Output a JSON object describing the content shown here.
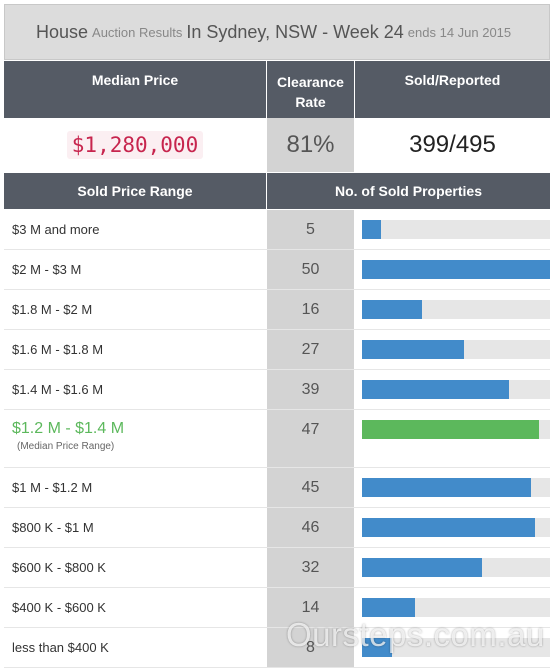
{
  "title": {
    "part1": "House",
    "part2": "Auction Results",
    "part3": "In Sydney, NSW - Week 24",
    "part4": "ends 14 Jun 2015"
  },
  "headers": {
    "median_price": "Median Price",
    "clearance_rate_line1": "Clearance",
    "clearance_rate_line2": "Rate",
    "sold_reported": "Sold/Reported",
    "sold_price_range": "Sold Price Range",
    "num_sold": "No. of Sold Properties"
  },
  "summary": {
    "median_price": "$1,280,000",
    "clearance_rate": "81%",
    "sold_reported": "399/495"
  },
  "colors": {
    "header_bg": "#555b65",
    "bar_blue": "#428bca",
    "bar_green": "#5cb85c",
    "median_price_text": "#c7254e"
  },
  "chart_data": {
    "type": "bar",
    "orientation": "horizontal",
    "max_value": 50,
    "rows": [
      {
        "range": "$3 M and more",
        "count": 5
      },
      {
        "range": "$2 M - $3 M",
        "count": 50
      },
      {
        "range": "$1.8 M - $2 M",
        "count": 16
      },
      {
        "range": "$1.6 M - $1.8 M",
        "count": 27
      },
      {
        "range": "$1.4 M - $1.6 M",
        "count": 39
      },
      {
        "range": "$1.2 M - $1.4 M",
        "count": 47,
        "note": "(Median Price Range)",
        "highlight": true
      },
      {
        "range": "$1 M - $1.2 M",
        "count": 45
      },
      {
        "range": "$800 K - $1 M",
        "count": 46
      },
      {
        "range": "$600 K - $800 K",
        "count": 32
      },
      {
        "range": "$400 K - $600 K",
        "count": 14
      },
      {
        "range": "less than $400 K",
        "count": 8
      }
    ]
  },
  "watermark": "Oursteps.com.au"
}
